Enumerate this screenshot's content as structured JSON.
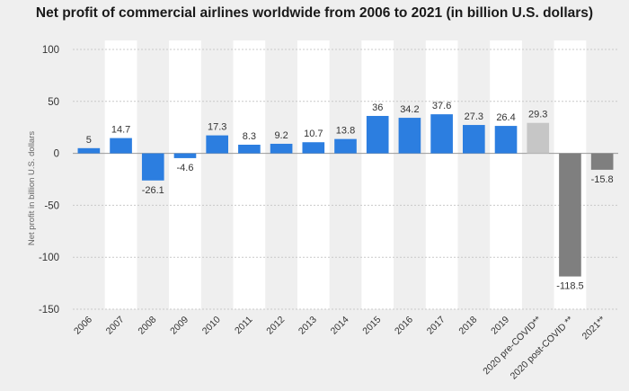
{
  "chart_data": {
    "type": "bar",
    "title": "Net profit of commercial airlines worldwide from 2006 to 2021 (in billion U.S. dollars)",
    "xlabel": "",
    "ylabel": "Net profit in billion U.S. dollars",
    "ylim": [
      -150,
      100
    ],
    "yticks": [
      100,
      50,
      0,
      -50,
      -100,
      -150
    ],
    "grid": true,
    "categories": [
      "2006",
      "2007",
      "2008",
      "2009",
      "2010",
      "2011",
      "2012",
      "2013",
      "2014",
      "2015",
      "2016",
      "2017",
      "2018",
      "2019",
      "2020 pre-COVID**",
      "2020 post-COVID **",
      "2021**"
    ],
    "values": [
      5,
      14.7,
      -26.1,
      -4.6,
      17.3,
      8.3,
      9.2,
      10.7,
      13.8,
      36,
      34.2,
      37.6,
      27.3,
      26.4,
      29.3,
      -118.5,
      -15.8
    ],
    "value_labels": [
      "5",
      "14.7",
      "-26.1",
      "-4.6",
      "17.3",
      "8.3",
      "9.2",
      "10.7",
      "13.8",
      "36",
      "34.2",
      "37.6",
      "27.3",
      "26.4",
      "29.3",
      "-118.5",
      "-15.8"
    ],
    "bar_colors": [
      "#2c7ee0",
      "#2c7ee0",
      "#2c7ee0",
      "#2c7ee0",
      "#2c7ee0",
      "#2c7ee0",
      "#2c7ee0",
      "#2c7ee0",
      "#2c7ee0",
      "#2c7ee0",
      "#2c7ee0",
      "#2c7ee0",
      "#2c7ee0",
      "#2c7ee0",
      "#c6c6c6",
      "#7f7f7f",
      "#7f7f7f"
    ]
  }
}
